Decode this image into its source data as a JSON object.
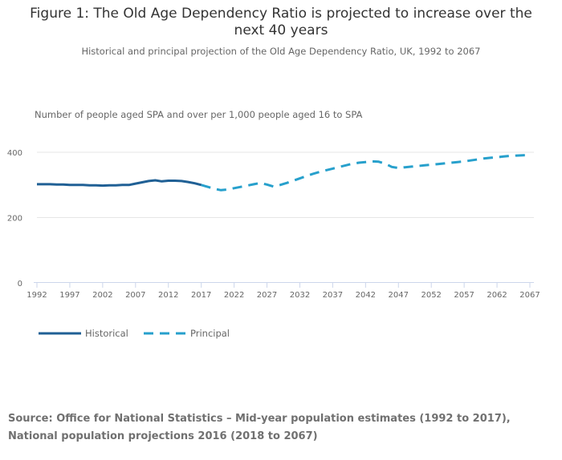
{
  "header": {
    "title": "Figure 1: The Old Age Dependency Ratio is projected to increase over the next 40 years",
    "subtitle": "Historical and principal projection of the Old Age Dependency Ratio, UK, 1992 to 2067"
  },
  "footer": {
    "source": "Source: Office for National Statistics – Mid-year population estimates (1992 to 2017), National population projections 2016 (2018 to 2067)"
  },
  "colors": {
    "historical": "#206095",
    "principal": "#27a0cc",
    "grid": "#e6e6e6",
    "axis": "#ccd6eb",
    "text": "#666666"
  },
  "chart_data": {
    "type": "line",
    "title": "Figure 1: The Old Age Dependency Ratio is projected to increase over the next 40 years",
    "subtitle": "Historical and principal projection of the Old Age Dependency Ratio, UK, 1992 to 2067",
    "xlabel": "",
    "ylabel": "Number of people aged SPA and over per 1,000 people aged 16 to SPA",
    "xlim": [
      1992,
      2067
    ],
    "ylim": [
      0,
      400
    ],
    "yticks": [
      0,
      200,
      400
    ],
    "xticks": [
      1992,
      1997,
      2002,
      2007,
      2012,
      2017,
      2022,
      2027,
      2032,
      2037,
      2042,
      2047,
      2052,
      2057,
      2062,
      2067
    ],
    "grid": true,
    "legend_position": "bottom-left",
    "series": [
      {
        "name": "Historical",
        "style": "solid",
        "x": [
          1992,
          1993,
          1994,
          1995,
          1996,
          1997,
          1998,
          1999,
          2000,
          2001,
          2002,
          2003,
          2004,
          2005,
          2006,
          2007,
          2008,
          2009,
          2010,
          2011,
          2012,
          2013,
          2014,
          2015,
          2016,
          2017
        ],
        "values": [
          302,
          302,
          302,
          301,
          301,
          300,
          300,
          300,
          299,
          299,
          298,
          299,
          299,
          300,
          300,
          304,
          308,
          312,
          314,
          311,
          313,
          313,
          312,
          309,
          305,
          300
        ]
      },
      {
        "name": "Principal",
        "style": "dashed",
        "x": [
          2017,
          2018,
          2019,
          2020,
          2021,
          2022,
          2023,
          2024,
          2025,
          2026,
          2027,
          2028,
          2029,
          2030,
          2031,
          2032,
          2033,
          2034,
          2035,
          2036,
          2037,
          2038,
          2039,
          2040,
          2041,
          2042,
          2043,
          2044,
          2045,
          2046,
          2047,
          2048,
          2049,
          2050,
          2051,
          2052,
          2053,
          2054,
          2055,
          2056,
          2057,
          2058,
          2059,
          2060,
          2061,
          2062,
          2063,
          2064,
          2065,
          2066,
          2067
        ],
        "values": [
          300,
          294,
          288,
          284,
          286,
          290,
          294,
          298,
          302,
          306,
          301,
          295,
          300,
          306,
          313,
          320,
          327,
          334,
          340,
          345,
          350,
          355,
          360,
          365,
          368,
          370,
          372,
          371,
          365,
          355,
          352,
          354,
          356,
          358,
          360,
          362,
          364,
          366,
          368,
          370,
          372,
          375,
          378,
          381,
          383,
          385,
          387,
          389,
          390,
          391,
          392
        ]
      }
    ],
    "legend": [
      "Historical",
      "Principal"
    ]
  }
}
